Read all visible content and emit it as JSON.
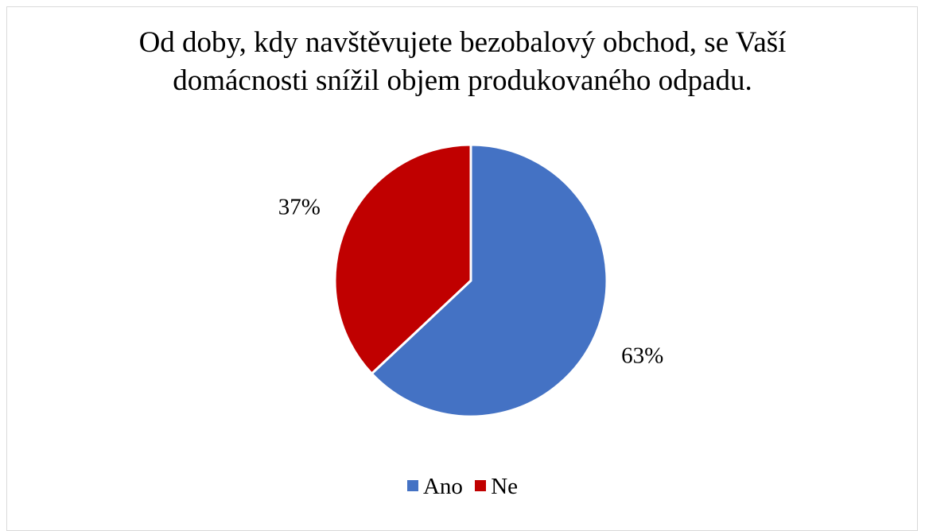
{
  "chart_data": {
    "type": "pie",
    "title_lines": [
      "Od doby, kdy navštěvujete bezobalový obchod, se Vaší",
      "domácnosti snížil objem produkovaného odpadu."
    ],
    "categories": [
      "Ano",
      "Ne"
    ],
    "values": [
      63,
      37
    ],
    "labels": [
      "63%",
      "37%"
    ],
    "colors": [
      "#4472C4",
      "#C00000"
    ],
    "legend_position": "bottom"
  }
}
